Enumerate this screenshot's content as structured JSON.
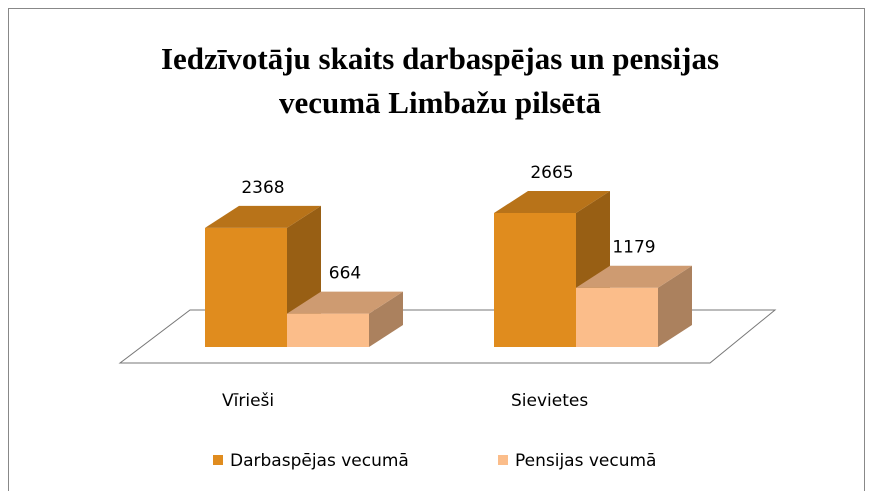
{
  "chart_data": {
    "type": "bar3d",
    "title": "Iedzīvotāju skaits darbaspējas un pensijas vecumā Limbažu pilsētā",
    "categories": [
      "Vīrieši",
      "Sievietes"
    ],
    "series": [
      {
        "name": "Darbaspējas vecumā",
        "color": "#e08c1e",
        "values": [
          2368,
          2665
        ]
      },
      {
        "name": "Pensijas vecumā",
        "color": "#fbbd8a",
        "values": [
          664,
          1179
        ]
      }
    ],
    "legend": "bottom"
  }
}
